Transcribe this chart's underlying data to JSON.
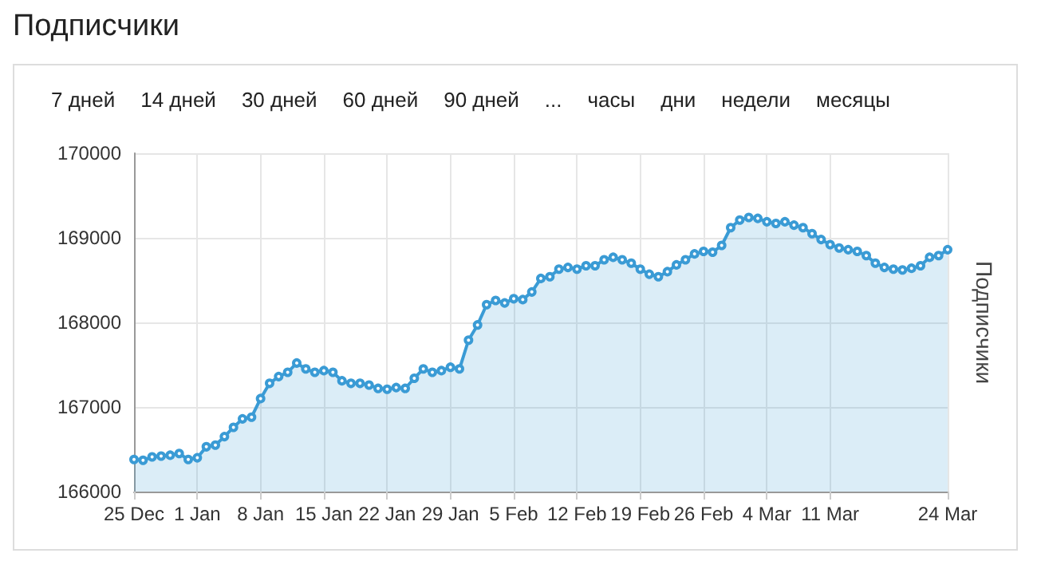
{
  "chart_data": {
    "type": "area",
    "title": "Подписчики",
    "ylabel": "Подписчики",
    "annotations": [
      "7 дней",
      "14 дней",
      "30 дней",
      "60 дней",
      "90 дней",
      "...",
      "часы",
      "дни",
      "недели",
      "месяцы"
    ],
    "categories": [
      "25 Dec",
      null,
      null,
      null,
      null,
      null,
      null,
      "1 Jan",
      null,
      null,
      null,
      null,
      null,
      null,
      "8 Jan",
      null,
      null,
      null,
      null,
      null,
      null,
      "15 Jan",
      null,
      null,
      null,
      null,
      null,
      null,
      "22 Jan",
      null,
      null,
      null,
      null,
      null,
      null,
      "29 Jan",
      null,
      null,
      null,
      null,
      null,
      null,
      "5 Feb",
      null,
      null,
      null,
      null,
      null,
      null,
      "12 Feb",
      null,
      null,
      null,
      null,
      null,
      null,
      "19 Feb",
      null,
      null,
      null,
      null,
      null,
      null,
      "26 Feb",
      null,
      null,
      null,
      null,
      null,
      null,
      "4 Mar",
      null,
      null,
      null,
      null,
      null,
      null,
      "11 Mar",
      null,
      null,
      null,
      null,
      null,
      null,
      null,
      null,
      null,
      null,
      null,
      null,
      "24 Mar"
    ],
    "series": [
      {
        "color": "#3a9bd5",
        "values": [
          166380,
          166370,
          166410,
          166420,
          166430,
          166450,
          166380,
          166400,
          166530,
          166550,
          166650,
          166760,
          166860,
          166880,
          167100,
          167280,
          167360,
          167410,
          167520,
          167450,
          167410,
          167430,
          167410,
          167310,
          167280,
          167280,
          167260,
          167220,
          167210,
          167230,
          167220,
          167340,
          167450,
          167410,
          167430,
          167470,
          167450,
          167790,
          167970,
          168210,
          168260,
          168230,
          168280,
          168270,
          168360,
          168520,
          168540,
          168630,
          168650,
          168630,
          168670,
          168670,
          168740,
          168770,
          168740,
          168700,
          168630,
          168570,
          168540,
          168600,
          168680,
          168740,
          168810,
          168840,
          168830,
          168910,
          169120,
          169210,
          169240,
          169230,
          169190,
          169170,
          169190,
          169150,
          169120,
          169050,
          168980,
          168920,
          168880,
          168860,
          168840,
          168790,
          168700,
          168650,
          168630,
          168620,
          168640,
          168670,
          168770,
          168790,
          168860
        ]
      }
    ],
    "ylim": [
      166000,
      170000
    ],
    "yticks": [
      166000,
      167000,
      168000,
      169000,
      170000
    ],
    "grid": true,
    "marker": "circle",
    "line_style": "solid"
  }
}
